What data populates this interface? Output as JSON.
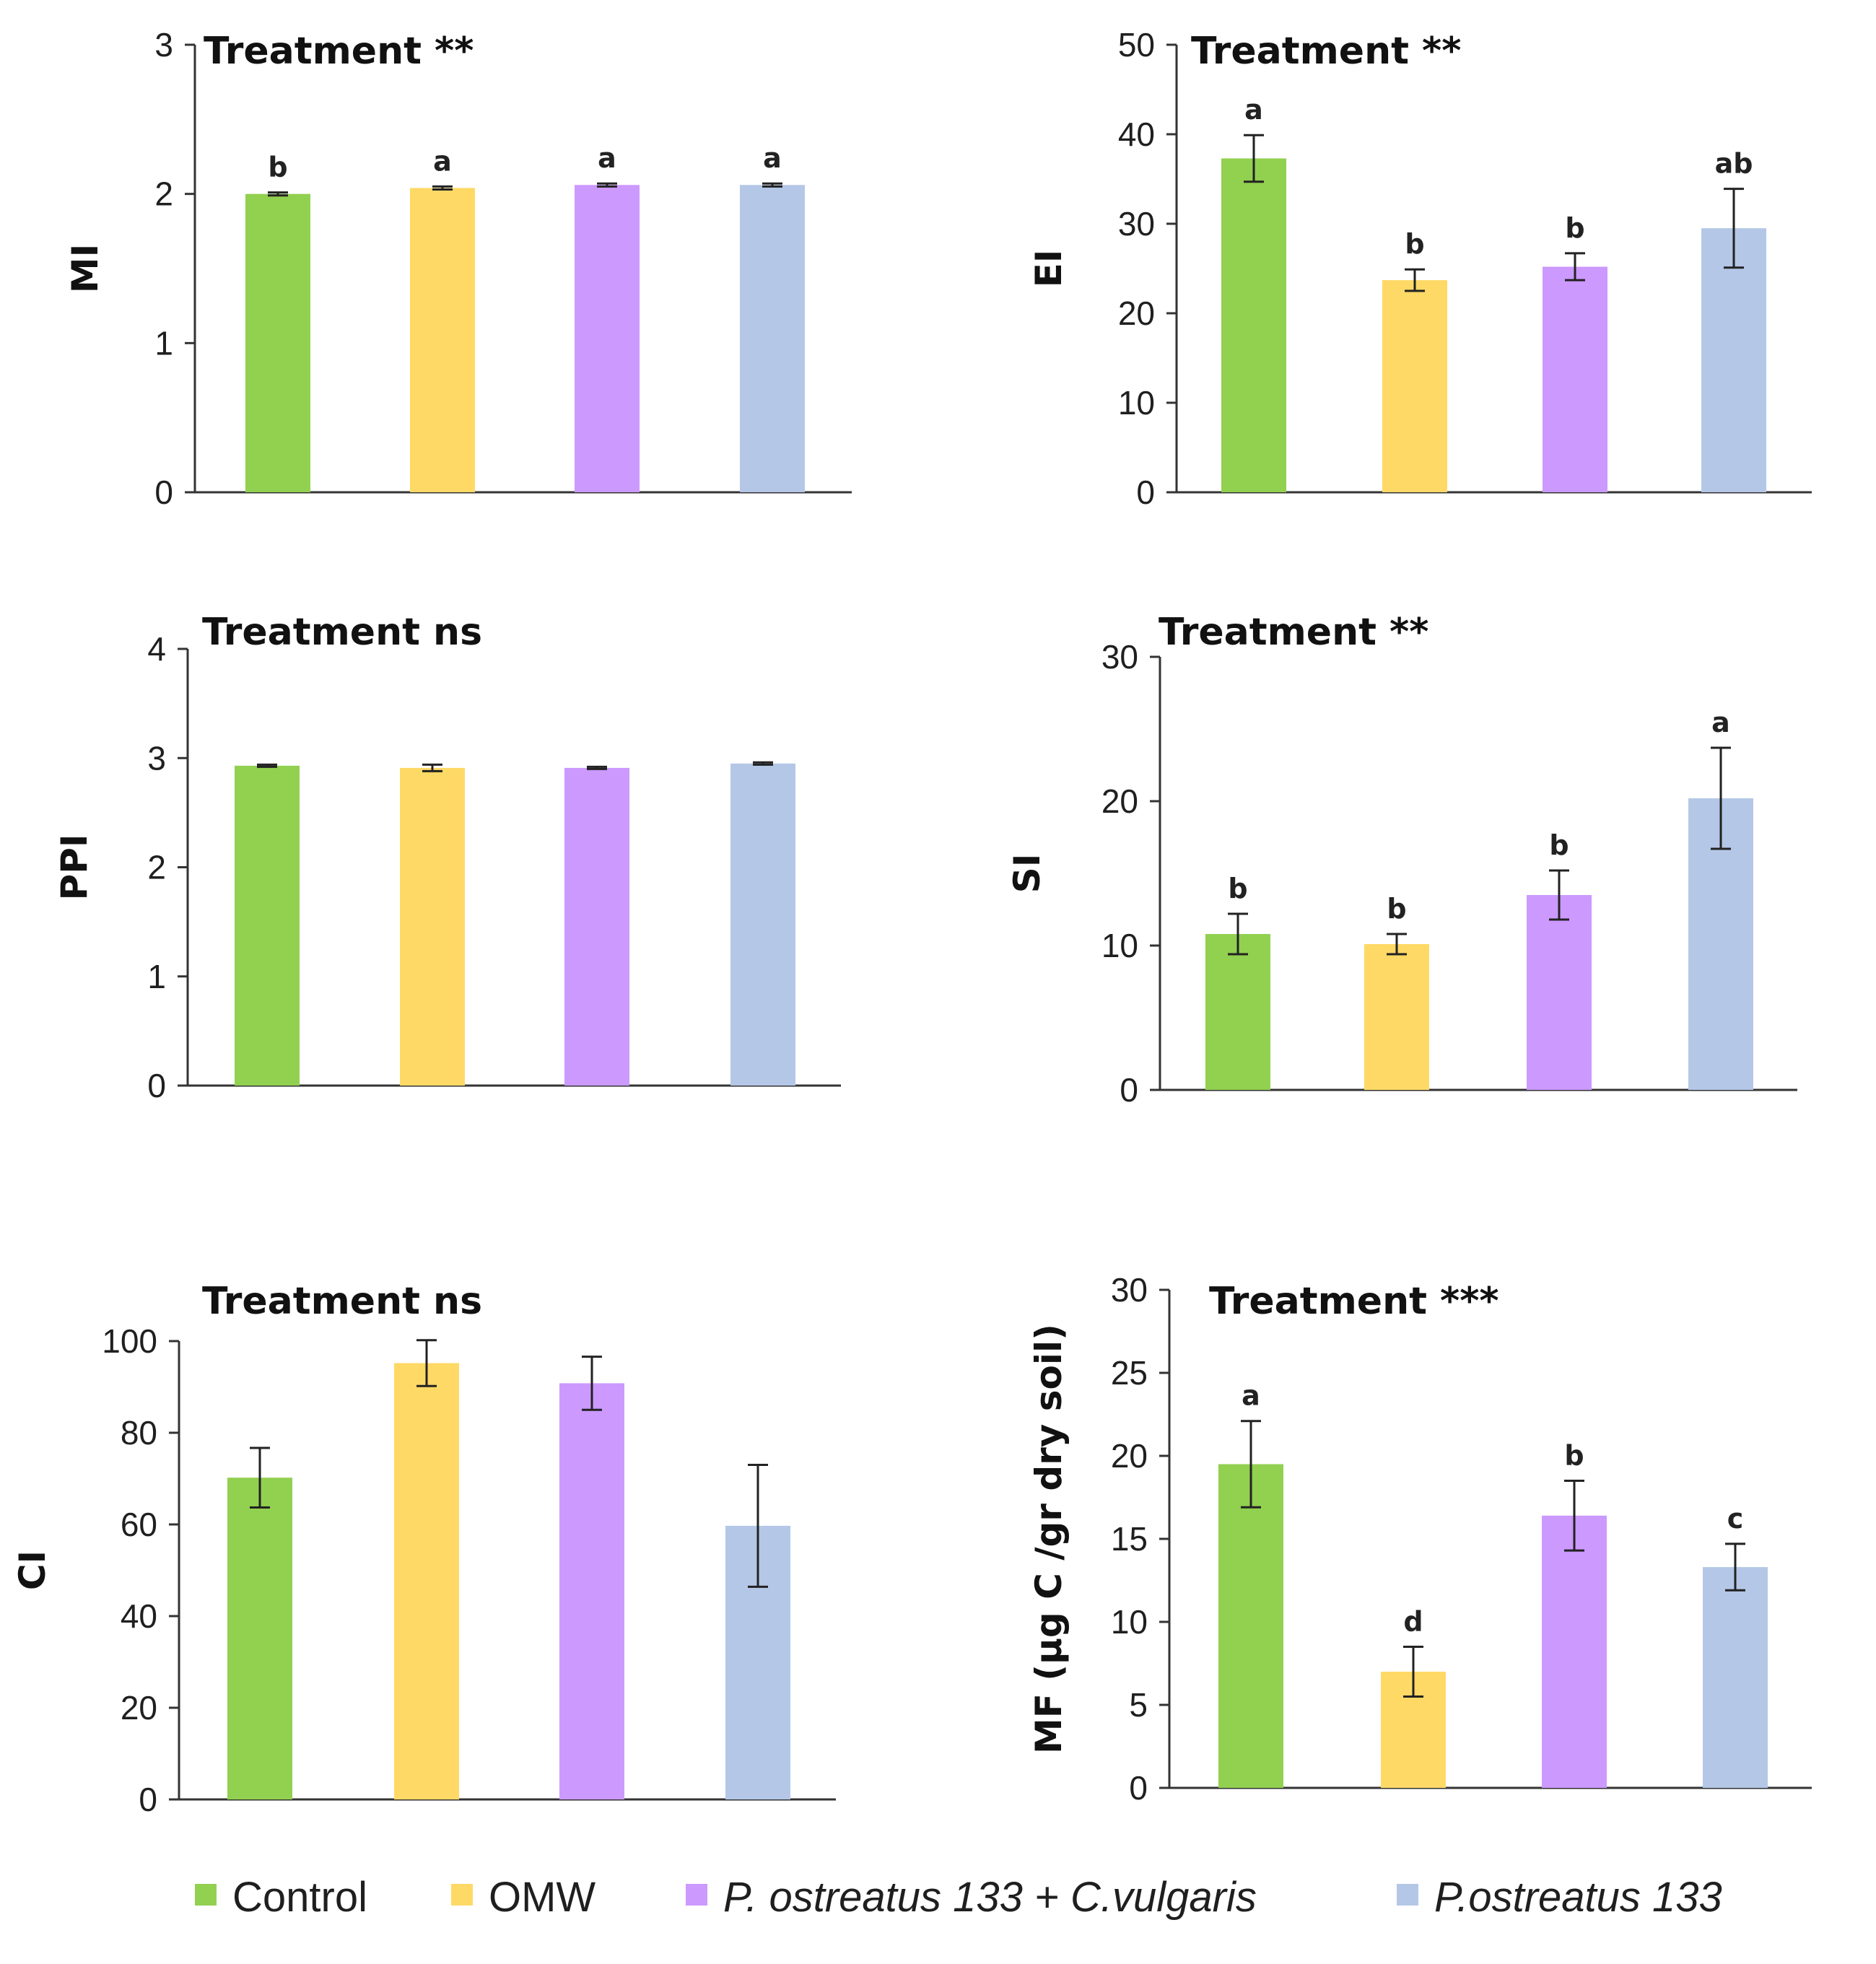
{
  "chart_data": [
    {
      "type": "bar",
      "title": "Treatment **",
      "ylabel": "MI",
      "ylim": [
        0,
        3
      ],
      "yticks": [
        0,
        1,
        2,
        3
      ],
      "categories": [
        "Control",
        "OMW",
        "P. ostreatus 133 + C.vulgaris",
        "P.ostreatus 133"
      ],
      "values": [
        2.0,
        2.04,
        2.06,
        2.06
      ],
      "errors": [
        0.01,
        0.01,
        0.01,
        0.01
      ],
      "letters": [
        "b",
        "a",
        "a",
        "a"
      ]
    },
    {
      "type": "bar",
      "title": "Treatment **",
      "ylabel": "EI",
      "ylim": [
        0,
        50
      ],
      "yticks": [
        0,
        10,
        20,
        30,
        40,
        50
      ],
      "categories": [
        "Control",
        "OMW",
        "P. ostreatus 133 + C.vulgaris",
        "P.ostreatus 133"
      ],
      "values": [
        37.3,
        23.7,
        25.2,
        29.5
      ],
      "errors": [
        2.6,
        1.2,
        1.5,
        4.4
      ],
      "letters": [
        "a",
        "b",
        "b",
        "ab"
      ]
    },
    {
      "type": "bar",
      "title": "Treatment ns",
      "ylabel": "PPI",
      "ylim": [
        0,
        4
      ],
      "yticks": [
        0,
        1,
        2,
        3,
        4
      ],
      "categories": [
        "Control",
        "OMW",
        "P. ostreatus 133 + C.vulgaris",
        "P.ostreatus 133"
      ],
      "values": [
        2.93,
        2.91,
        2.91,
        2.95
      ],
      "errors": [
        0.01,
        0.03,
        0.01,
        0.01
      ],
      "letters": [
        "",
        "",
        "",
        ""
      ]
    },
    {
      "type": "bar",
      "title": "Treatment **",
      "ylabel": "SI",
      "ylim": [
        0,
        30
      ],
      "yticks": [
        0,
        10,
        20,
        30
      ],
      "categories": [
        "Control",
        "OMW",
        "P. ostreatus 133 + C.vulgaris",
        "P.ostreatus 133"
      ],
      "values": [
        10.8,
        10.1,
        13.5,
        20.2
      ],
      "errors": [
        1.4,
        0.7,
        1.7,
        3.5
      ],
      "letters": [
        "b",
        "b",
        "b",
        "a"
      ]
    },
    {
      "type": "bar",
      "title": "Treatment ns",
      "ylabel": "CI",
      "ylim": [
        0,
        100
      ],
      "yticks": [
        0,
        20,
        40,
        60,
        80,
        100
      ],
      "categories": [
        "Control",
        "OMW",
        "P. ostreatus 133 + C.vulgaris",
        "P.ostreatus 133"
      ],
      "values": [
        70.2,
        95.2,
        90.8,
        59.7
      ],
      "errors": [
        6.5,
        5.0,
        5.8,
        13.3
      ],
      "letters": [
        "",
        "",
        "",
        ""
      ]
    },
    {
      "type": "bar",
      "title": "Treatment ***",
      "ylabel": "MF (µg C /gr dry soil)",
      "ylim": [
        0,
        30
      ],
      "yticks": [
        0,
        5,
        10,
        15,
        20,
        25,
        30
      ],
      "categories": [
        "Control",
        "OMW",
        "P. ostreatus 133 + C.vulgaris",
        "P.ostreatus 133"
      ],
      "values": [
        19.5,
        7.0,
        16.4,
        13.3
      ],
      "errors": [
        2.6,
        1.5,
        2.1,
        1.4
      ],
      "letters": [
        "a",
        "d",
        "b",
        "c"
      ]
    }
  ],
  "legend": {
    "position": "bottom",
    "items": [
      {
        "label": "Control",
        "color": "#92d050",
        "italic": false
      },
      {
        "label": "OMW",
        "color": "#ffd966",
        "italic": false
      },
      {
        "label": "P. ostreatus 133 + C.vulgaris",
        "color": "#cc99ff",
        "italic": true
      },
      {
        "label": "P.ostreatus 133",
        "color": "#b4c7e7",
        "italic": true
      }
    ]
  },
  "colors": [
    "#92d050",
    "#ffd966",
    "#cc99ff",
    "#b4c7e7"
  ]
}
